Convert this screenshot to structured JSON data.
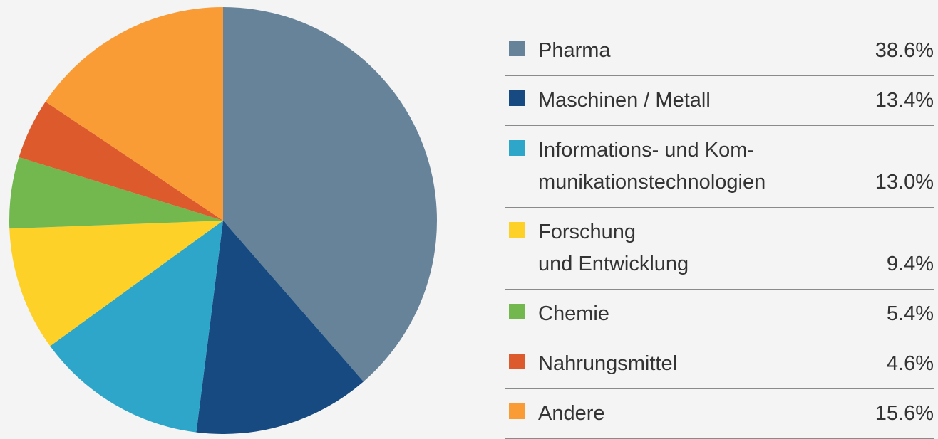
{
  "chart_data": {
    "type": "pie",
    "categories": [
      "Pharma",
      "Maschinen / Metall",
      "Informations- und Kom-\nmunikationstechnologien",
      "Forschung\nund Entwicklung",
      "Chemie",
      "Nahrungsmittel",
      "Andere"
    ],
    "values": [
      38.6,
      13.4,
      13.0,
      9.4,
      5.4,
      4.6,
      15.6
    ],
    "value_labels": [
      "38.6%",
      "13.4%",
      "13.0%",
      "9.4%",
      "5.4%",
      "4.6%",
      "15.6%"
    ],
    "colors": [
      "#678399",
      "#164a80",
      "#2ea6c9",
      "#fdd127",
      "#72b84f",
      "#dd5a2c",
      "#f99c35"
    ]
  }
}
